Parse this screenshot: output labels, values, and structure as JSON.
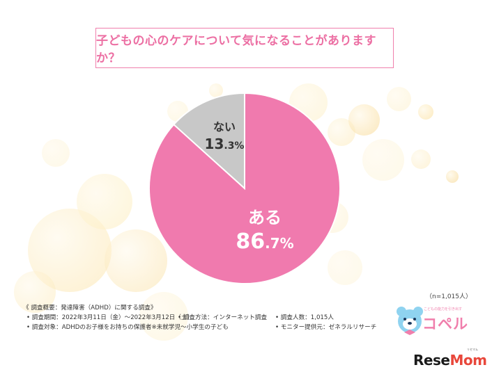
{
  "question": "子どもの心のケアについて気になることがありますか？",
  "chart_data": {
    "type": "pie",
    "categories": [
      "ある",
      "ない"
    ],
    "values": [
      86.7,
      13.3
    ],
    "colors": [
      "#f07aae",
      "#c8c8c8"
    ],
    "value_suffix": "%"
  },
  "sample_size": "（n=1,015人）",
  "notes": {
    "heading": "《 調査概要：発達障害（ADHD）に関する調査》",
    "period": "• 調査期間：2022年3月11日（金）～2022年3月12日（土）",
    "method": "• 調査方法：インターネット調査",
    "count": "• 調査人数：1,015人",
    "target": "• 調査対象：ADHDのお子様をお持ちの保護者※未就学児～小学生の子ども",
    "provider": "• モニター提供元：ゼネラルリサーチ"
  },
  "brand": {
    "ceperu_sub": "こどもの能力を引き出す",
    "ceperu": "コペル",
    "resemom_prefix": "Rese",
    "resemom_accent": "Mom",
    "resemom_ruby": "リセマム"
  }
}
